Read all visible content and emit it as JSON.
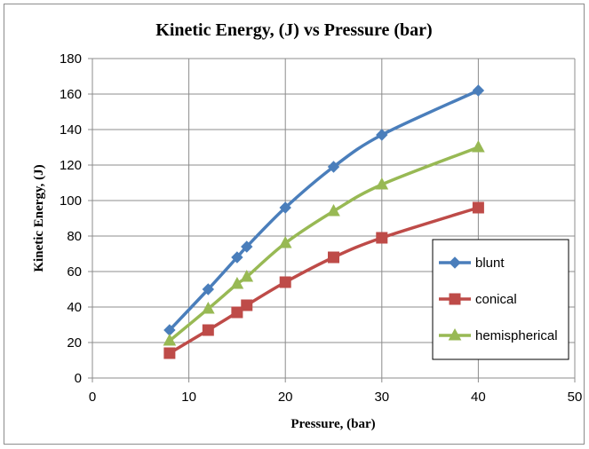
{
  "chart_data": {
    "type": "line",
    "title": "Kinetic Energy, (J) vs Pressure (bar)",
    "xlabel": "Pressure, (bar)",
    "ylabel": "Kinetic Energy, (J)",
    "xlim": [
      0,
      50
    ],
    "ylim": [
      0,
      180
    ],
    "xticks": [
      0,
      10,
      20,
      30,
      40,
      50
    ],
    "yticks": [
      0,
      20,
      40,
      60,
      80,
      100,
      120,
      140,
      160,
      180
    ],
    "grid": true,
    "legend_position": "right",
    "series": [
      {
        "name": "blunt",
        "color": "#4a7ebb",
        "marker": "diamond",
        "points": [
          [
            8,
            27
          ],
          [
            12,
            50
          ],
          [
            15,
            68
          ],
          [
            16,
            74
          ],
          [
            20,
            96
          ],
          [
            25,
            119
          ],
          [
            30,
            137
          ],
          [
            40,
            162
          ]
        ]
      },
      {
        "name": "conical",
        "color": "#be4b48",
        "marker": "square",
        "points": [
          [
            8,
            14
          ],
          [
            12,
            27
          ],
          [
            15,
            37
          ],
          [
            16,
            41
          ],
          [
            20,
            54
          ],
          [
            25,
            68
          ],
          [
            30,
            79
          ],
          [
            40,
            96
          ]
        ]
      },
      {
        "name": "hemispherical",
        "color": "#98b954",
        "marker": "triangle",
        "points": [
          [
            8,
            21
          ],
          [
            12,
            39
          ],
          [
            15,
            53
          ],
          [
            16,
            57
          ],
          [
            20,
            76
          ],
          [
            25,
            94
          ],
          [
            30,
            109
          ],
          [
            40,
            130
          ]
        ]
      }
    ]
  }
}
